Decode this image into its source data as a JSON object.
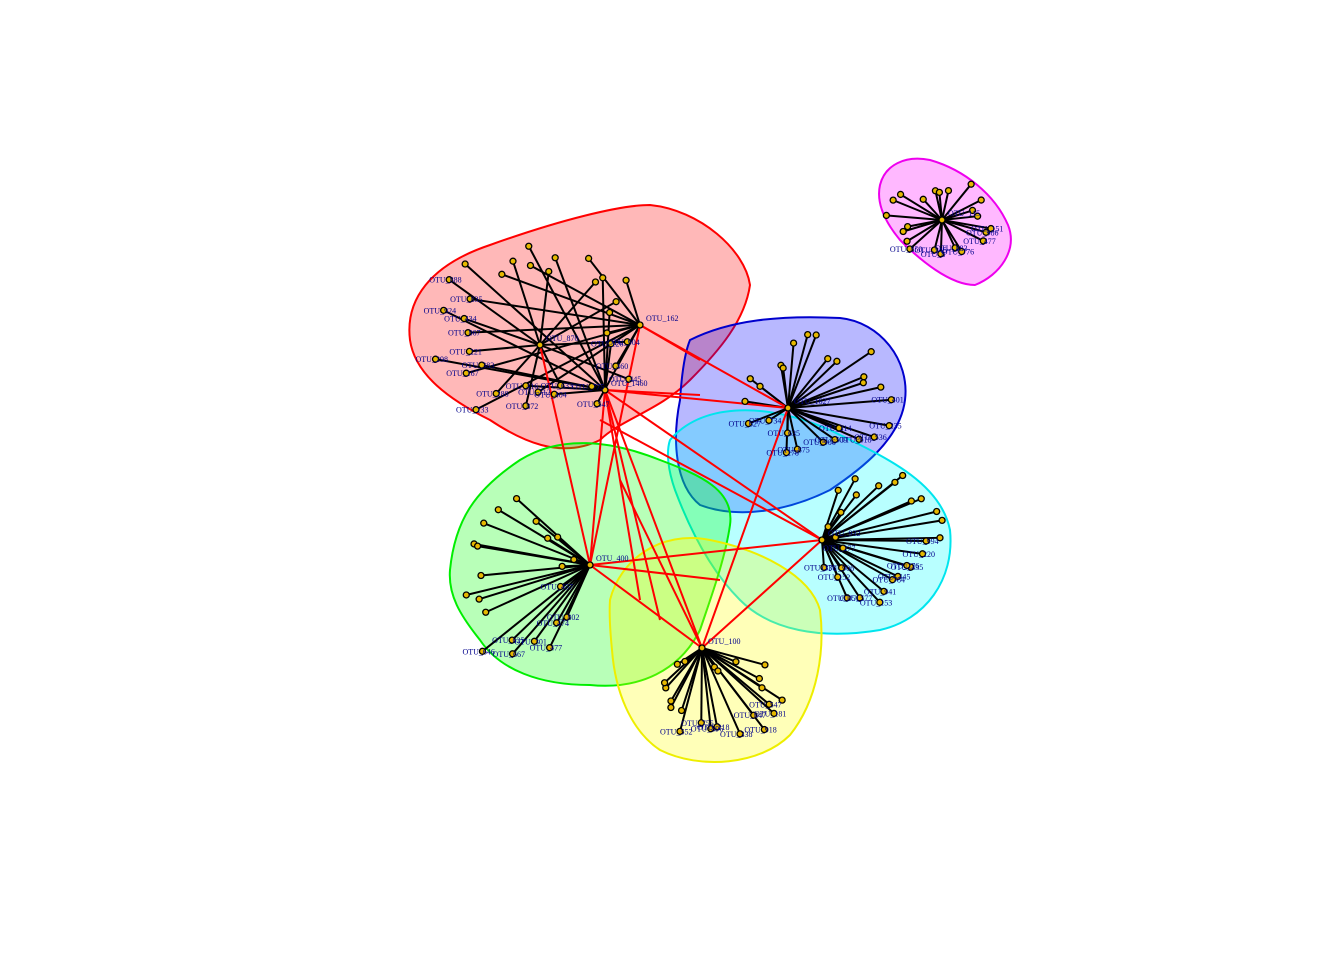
{
  "diagram": {
    "type": "network-with-module-hulls",
    "node_prefix": "OTU",
    "colors": {
      "intra_edge": "#000000",
      "inter_edge": "#ff0000",
      "node_fill": "#e6b800",
      "node_stroke": "#000000",
      "label": "#00008b"
    },
    "modules": [
      {
        "id": "red",
        "hull_fill": "#ff0000",
        "hull_stroke": "#ff0000",
        "hubs": [
          "OTU_870",
          "OTU_1460",
          "OTU_162"
        ],
        "leaves": [
          "OTU_904",
          "OTU_126",
          "OTU_460",
          "OTU_445",
          "OTU_775",
          "OTU_547",
          "OTU_633",
          "OTU_404",
          "OTU_712",
          "OTU_872",
          "OTU_416",
          "OTU_233",
          "OTU_288",
          "OTU_383",
          "OTU_167",
          "OTU_221",
          "OTU_298",
          "OTU_867",
          "OTU_434",
          "OTU_924",
          "OTU_835",
          "OTU_888"
        ]
      },
      {
        "id": "blue",
        "hull_fill": "#0000ff",
        "hull_stroke": "#0000cd",
        "hubs": [
          "OTU_1627"
        ],
        "leaves": [
          "OTU_401",
          "OTU_235",
          "OTU_536",
          "OTU_618",
          "OTU_314",
          "OTU_509",
          "OTU_906",
          "OTU_875",
          "OTU_278",
          "OTU_635",
          "OTU_734",
          "OTU_627"
        ]
      },
      {
        "id": "cyan",
        "hull_fill": "#00ffff",
        "hull_stroke": "#00e5ee",
        "hubs": [
          "OTU_932"
        ],
        "leaves": [
          "OTU_994",
          "OTU_220",
          "OTU_435",
          "OTU_276",
          "OTU_445",
          "OTU_784",
          "OTU_941",
          "OTU_153",
          "OTU_577",
          "OTU_351",
          "OTU_152",
          "OTU_906",
          "OTU_338",
          "OTU_277"
        ]
      },
      {
        "id": "green",
        "hull_fill": "#00ff00",
        "hull_stroke": "#00ee00",
        "hubs": [
          "OTU_400"
        ],
        "leaves": [
          "OTU_457",
          "OTU_802",
          "OTU_474",
          "OTU_477",
          "OTU_301",
          "OTU_667",
          "OTU_625",
          "OTU_646"
        ]
      },
      {
        "id": "yellow",
        "hull_fill": "#ffff00",
        "hull_stroke": "#eeee00",
        "hubs": [
          "OTU_100"
        ],
        "leaves": [
          "OTU_547",
          "OTU_181",
          "OTU_847",
          "OTU_918",
          "OTU_338",
          "OTU_218",
          "OTU_896",
          "OTU_755",
          "OTU_552"
        ]
      },
      {
        "id": "magenta",
        "hull_fill": "#ff00ff",
        "hull_stroke": "#ee00ee",
        "hubs": [
          "OTU_115"
        ],
        "leaves": [
          "OTU_151",
          "OTU_986",
          "OTU_477",
          "OTU_776",
          "OTU_883",
          "OTU_8",
          "OTU_345",
          "OTU_850"
        ]
      }
    ]
  }
}
